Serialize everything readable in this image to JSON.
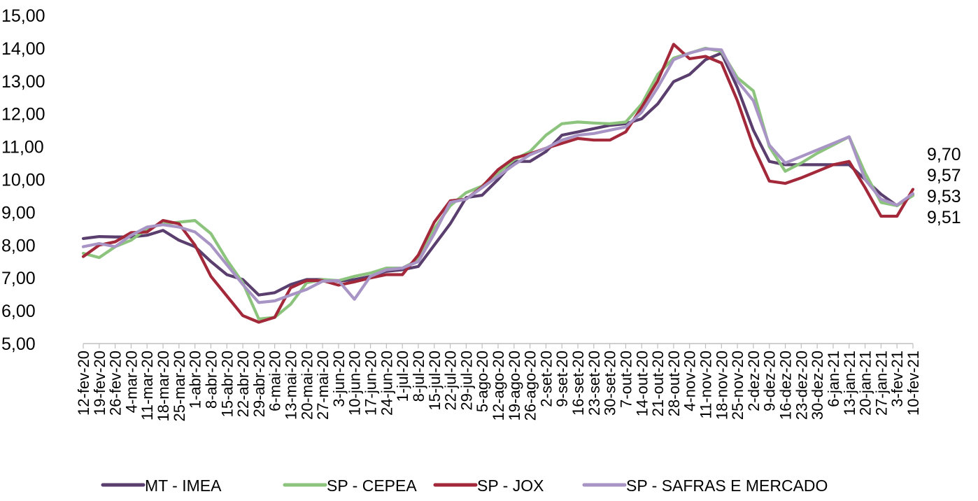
{
  "chart_data": {
    "type": "line",
    "title": "",
    "xlabel": "",
    "ylabel": "",
    "ylim": [
      5,
      15
    ],
    "y_ticks": [
      "5,00",
      "6,00",
      "7,00",
      "8,00",
      "9,00",
      "10,00",
      "11,00",
      "12,00",
      "13,00",
      "14,00",
      "15,00"
    ],
    "grid": false,
    "legend_position": "bottom",
    "categories": [
      "12-fev-20",
      "19-fev-20",
      "26-fev-20",
      "4-mar-20",
      "11-mar-20",
      "18-mar-20",
      "25-mar-20",
      "1-abr-20",
      "8-abr-20",
      "15-abr-20",
      "22-abr-20",
      "29-abr-20",
      "6-mai-20",
      "13-mai-20",
      "20-mai-20",
      "27-mai-20",
      "3-jun-20",
      "10-jun-20",
      "17-jun-20",
      "24-jun-20",
      "1-jul-20",
      "8-jul-20",
      "15-jul-20",
      "22-jul-20",
      "29-jul-20",
      "5-ago-20",
      "12-ago-20",
      "19-ago-20",
      "26-ago-20",
      "2-set-20",
      "9-set-20",
      "16-set-20",
      "23-set-20",
      "30-set-20",
      "7-out-20",
      "14-out-20",
      "21-out-20",
      "28-out-20",
      "4-nov-20",
      "11-nov-20",
      "18-nov-20",
      "25-nov-20",
      "2-dez-20",
      "9-dez-20",
      "16-dez-20",
      "23-dez-20",
      "30-dez-20",
      "6-jan-21",
      "13-jan-21",
      "20-jan-21",
      "27-jan-21",
      "3-fev-21",
      "10-fev-21"
    ],
    "series": [
      {
        "name": "MT - IMEA",
        "color": "#5a3e6e",
        "values": [
          8.2,
          8.26,
          8.25,
          8.25,
          8.3,
          8.45,
          8.15,
          7.95,
          7.5,
          7.1,
          6.95,
          6.48,
          6.55,
          6.8,
          6.95,
          6.95,
          6.9,
          6.95,
          7.05,
          7.2,
          7.25,
          7.35,
          8.0,
          8.65,
          9.45,
          9.52,
          10.0,
          10.55,
          10.55,
          10.85,
          11.35,
          11.45,
          11.55,
          11.65,
          11.7,
          11.85,
          12.3,
          12.98,
          13.2,
          13.65,
          13.85,
          12.8,
          11.5,
          10.55,
          10.45,
          10.45,
          10.45,
          10.45,
          10.45,
          10.0,
          9.55,
          9.2,
          9.53
        ]
      },
      {
        "name": "SP - CEPEA",
        "color": "#8cc47d",
        "values": [
          7.75,
          7.62,
          7.95,
          8.15,
          8.5,
          8.65,
          8.7,
          8.75,
          8.35,
          7.55,
          6.85,
          5.75,
          5.8,
          6.2,
          6.85,
          6.95,
          6.92,
          7.05,
          7.15,
          7.3,
          7.3,
          7.55,
          8.5,
          9.2,
          9.6,
          9.8,
          10.2,
          10.6,
          10.85,
          11.35,
          11.7,
          11.75,
          11.72,
          11.7,
          11.75,
          12.3,
          13.2,
          13.7,
          13.85,
          14.0,
          13.9,
          13.1,
          12.7,
          11.0,
          10.25,
          10.5,
          10.8,
          11.05,
          11.3,
          10.2,
          9.3,
          9.2,
          9.51
        ]
      },
      {
        "name": "SP - JOX",
        "color": "#a3283a",
        "values": [
          7.65,
          8.0,
          8.1,
          8.38,
          8.4,
          8.75,
          8.65,
          8.0,
          7.05,
          6.45,
          5.85,
          5.65,
          5.8,
          6.7,
          6.92,
          6.92,
          6.78,
          6.88,
          7.0,
          7.1,
          7.1,
          7.7,
          8.7,
          9.35,
          9.4,
          9.78,
          10.3,
          10.65,
          10.78,
          10.95,
          11.1,
          11.25,
          11.2,
          11.2,
          11.45,
          12.2,
          13.0,
          14.12,
          13.68,
          13.75,
          13.55,
          12.4,
          11.0,
          9.95,
          9.88,
          10.05,
          10.25,
          10.45,
          10.55,
          9.75,
          8.88,
          8.88,
          9.7
        ]
      },
      {
        "name": "SP - SAFRAS E MERCADO",
        "color": "#a895c5",
        "values": [
          7.95,
          8.05,
          7.95,
          8.3,
          8.55,
          8.62,
          8.55,
          8.4,
          8.0,
          7.4,
          6.8,
          6.25,
          6.3,
          6.48,
          6.65,
          6.9,
          6.92,
          6.35,
          7.05,
          7.25,
          7.3,
          7.5,
          8.35,
          9.3,
          9.4,
          9.75,
          10.1,
          10.45,
          10.75,
          10.95,
          11.2,
          11.35,
          11.4,
          11.5,
          11.6,
          12.05,
          12.8,
          13.65,
          13.85,
          13.98,
          13.95,
          13.0,
          12.4,
          11.05,
          10.5,
          10.7,
          10.9,
          11.1,
          11.3,
          10.0,
          9.4,
          9.22,
          9.57
        ]
      }
    ],
    "end_labels": [
      "9,70",
      "9,57",
      "9,53",
      "9,51"
    ]
  }
}
